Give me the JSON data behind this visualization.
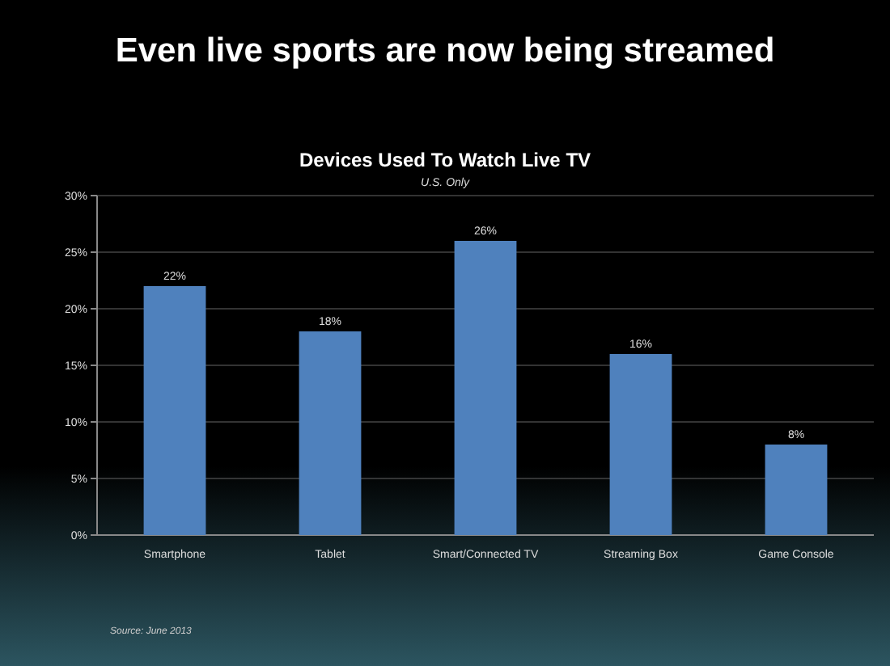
{
  "chart_data": {
    "type": "bar",
    "title": "Even live sports are now being streamed",
    "subtitle": "Devices Used To Watch Live TV",
    "annotations": [
      "U.S. Only",
      "Source: June 2013"
    ],
    "categories": [
      "Smartphone",
      "Tablet",
      "Smart/Connected TV",
      "Streaming Box",
      "Game Console"
    ],
    "values": [
      22,
      18,
      26,
      16,
      8
    ],
    "value_labels": [
      "22%",
      "18%",
      "26%",
      "16%",
      "8%"
    ],
    "color": "#4f81bd",
    "ylim": [
      0,
      30
    ],
    "yticks": [
      {
        "value": 0,
        "label": "0%"
      },
      {
        "value": 5,
        "label": "5%"
      },
      {
        "value": 10,
        "label": "10%"
      },
      {
        "value": 15,
        "label": "15%"
      },
      {
        "value": 20,
        "label": "20%"
      },
      {
        "value": 25,
        "label": "25%"
      },
      {
        "value": 30,
        "label": "30%"
      }
    ],
    "grid": "y"
  }
}
